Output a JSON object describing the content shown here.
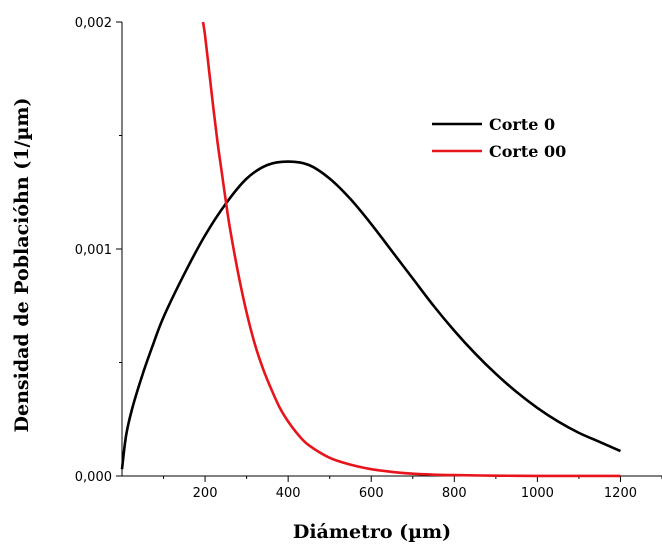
{
  "chart_data": {
    "type": "line",
    "title": "",
    "xlabel": "Diámetro (µm)",
    "ylabel": "Densidad de Poblacióhn (1/µm)",
    "xlim": [
      0,
      1300
    ],
    "ylim": [
      0,
      0.002
    ],
    "x_ticks": [
      200,
      400,
      600,
      800,
      1000,
      1200
    ],
    "x_tick_labels": [
      "200",
      "400",
      "600",
      "800",
      "1000",
      "1200"
    ],
    "y_ticks": [
      0,
      0.001,
      0.002
    ],
    "y_tick_labels": [
      "0,000",
      "0,001",
      "0,002"
    ],
    "grid": false,
    "legend_position": "top-right",
    "series": [
      {
        "name": "Corte 0",
        "color": "#000000",
        "x": [
          0,
          10,
          25,
          50,
          75,
          100,
          150,
          200,
          250,
          300,
          350,
          400,
          450,
          500,
          550,
          600,
          650,
          700,
          750,
          800,
          850,
          900,
          950,
          1000,
          1050,
          1100,
          1150,
          1200
        ],
        "y": [
          3e-05,
          0.00018,
          0.0003,
          0.00045,
          0.00058,
          0.0007,
          0.00089,
          0.00106,
          0.0012,
          0.00131,
          0.00137,
          0.001385,
          0.00137,
          0.00131,
          0.00122,
          0.00111,
          0.00099,
          0.00087,
          0.00075,
          0.00064,
          0.00054,
          0.00045,
          0.00037,
          0.0003,
          0.00024,
          0.00019,
          0.00015,
          0.00011
        ]
      },
      {
        "name": "Corte 00",
        "color": "#e8141b",
        "x": [
          195,
          200,
          210,
          220,
          230,
          240,
          250,
          260,
          280,
          300,
          320,
          340,
          360,
          380,
          400,
          425,
          450,
          500,
          550,
          600,
          650,
          700,
          750,
          800,
          900,
          1000,
          1100,
          1200
        ],
        "y": [
          0.002,
          0.00194,
          0.00178,
          0.00162,
          0.00147,
          0.00134,
          0.00121,
          0.00109,
          0.00089,
          0.00072,
          0.00058,
          0.00047,
          0.00038,
          0.0003,
          0.00024,
          0.00018,
          0.000135,
          8e-05,
          5e-05,
          3e-05,
          1.8e-05,
          1e-05,
          6e-06,
          4e-06,
          1.5e-06,
          5e-07,
          2e-07,
          1e-07
        ]
      }
    ]
  }
}
